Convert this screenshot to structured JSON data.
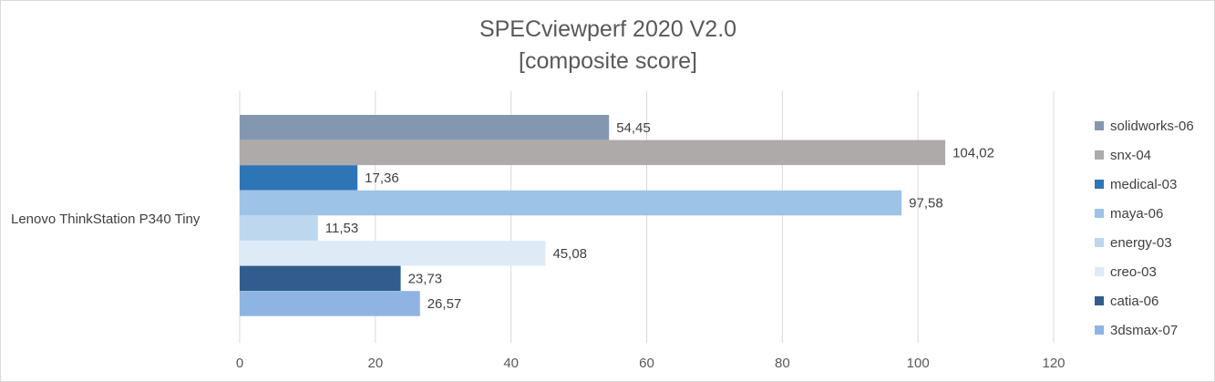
{
  "chart_data": {
    "type": "bar",
    "orientation": "horizontal",
    "title": "SPECviewperf 2020 V2.0",
    "subtitle": "[composite score]",
    "categories": [
      "Lenovo ThinkStation P340 Tiny"
    ],
    "xlim": [
      0,
      120
    ],
    "x_ticks": [
      "0",
      "20",
      "40",
      "60",
      "80",
      "100",
      "120"
    ],
    "x_tick_values": [
      0,
      20,
      40,
      60,
      80,
      100,
      120
    ],
    "grid": true,
    "legend_position": "right",
    "series": [
      {
        "name": "solidworks-06",
        "values": [
          54.45
        ],
        "label": "54,45",
        "color": "#8497b0"
      },
      {
        "name": "snx-04",
        "values": [
          104.02
        ],
        "label": "104,02",
        "color": "#aeaaaa"
      },
      {
        "name": "medical-03",
        "values": [
          17.36
        ],
        "label": "17,36",
        "color": "#2e75b6"
      },
      {
        "name": "maya-06",
        "values": [
          97.58
        ],
        "label": "97,58",
        "color": "#9dc3e6"
      },
      {
        "name": "energy-03",
        "values": [
          11.53
        ],
        "label": "11,53",
        "color": "#bdd7ee"
      },
      {
        "name": "creo-03",
        "values": [
          45.08
        ],
        "label": "45,08",
        "color": "#deebf7"
      },
      {
        "name": "catia-06",
        "values": [
          23.73
        ],
        "label": "23,73",
        "color": "#335c8e"
      },
      {
        "name": "3dsmax-07",
        "values": [
          26.57
        ],
        "label": "26,57",
        "color": "#8eb4e3"
      }
    ]
  }
}
